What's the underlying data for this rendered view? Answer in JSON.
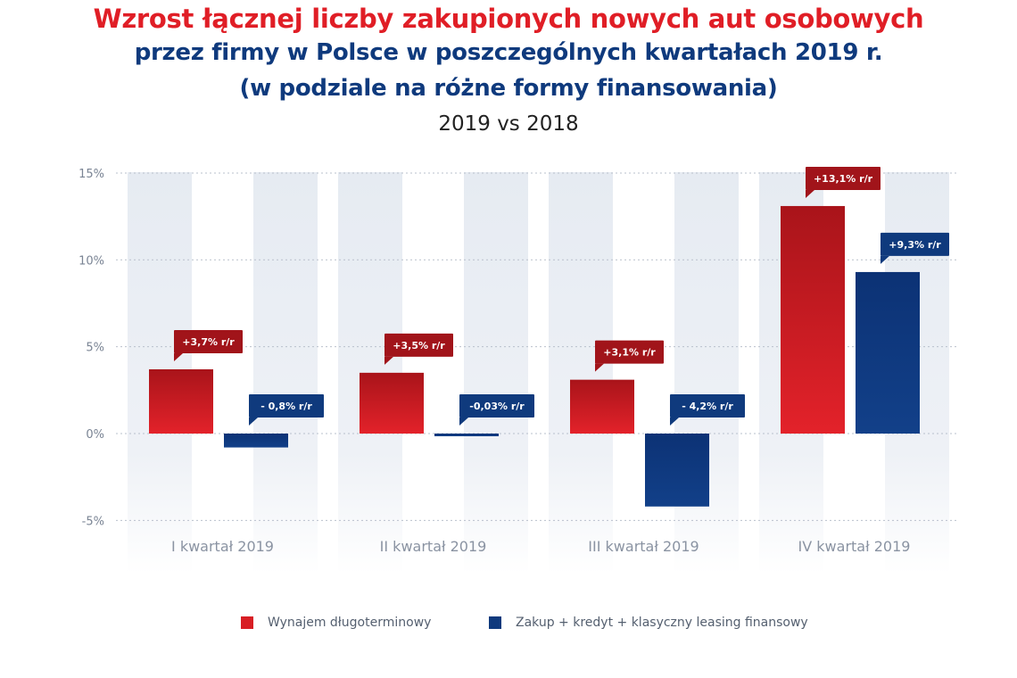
{
  "title": {
    "line1": "Wzrost łącznej liczby zakupionych nowych aut osobowych",
    "line2": "przez firmy w Polsce w poszczególnych kwartałach 2019 r.",
    "line3": "(w podziale na różne formy finansowania)"
  },
  "subtitle": "2019 vs 2018",
  "colors": {
    "red": "#d81e24",
    "red_dark": "#a1141a",
    "blue": "#0f3a7d",
    "blue_dark": "#0a2c63",
    "band": "#e8ecf3"
  },
  "chart_data": {
    "type": "bar",
    "title": "Wzrost łącznej liczby zakupionych nowych aut osobowych przez firmy w Polsce w poszczególnych kwartałach 2019 r. (w podziale na różne formy finansowania)",
    "subtitle": "2019 vs 2018",
    "categories": [
      "I kwartał 2019",
      "II kwartał 2019",
      "III kwartał 2019",
      "IV kwartał 2019"
    ],
    "series": [
      {
        "name": "Wynajem długoterminowy",
        "color": "#d81e24",
        "values": [
          3.7,
          3.5,
          3.1,
          13.1
        ],
        "labels": [
          "+3,7% r/r",
          "+3,5% r/r",
          "+3,1% r/r",
          "+13,1% r/r"
        ]
      },
      {
        "name": "Zakup + kredyt + klasyczny leasing finansowy",
        "color": "#0f3a7d",
        "values": [
          -0.8,
          -0.03,
          -4.2,
          9.3
        ],
        "labels": [
          "- 0,8% r/r",
          "-0,03% r/r",
          "- 4,2% r/r",
          "+9,3% r/r"
        ]
      }
    ],
    "yticks": [
      "15%",
      "10%",
      "5%",
      "0%",
      "-5%"
    ],
    "ytick_values": [
      15,
      10,
      5,
      0,
      -5
    ],
    "ylim": [
      -5,
      15
    ],
    "xlabel": "",
    "ylabel": "",
    "grid": true,
    "legend": "bottom"
  }
}
